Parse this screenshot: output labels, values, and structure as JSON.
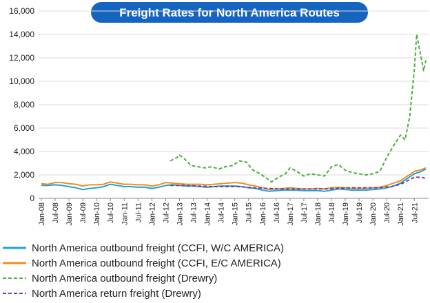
{
  "chart_data": {
    "type": "line",
    "title": "Freight Rates for North America Routes",
    "xlabel": "",
    "ylabel": "",
    "ylim": [
      0,
      16000
    ],
    "yticks": [
      "0",
      "2,000",
      "4,000",
      "6,000",
      "8,000",
      "10,000",
      "12,000",
      "14,000",
      "16,000"
    ],
    "xticks": [
      "Jan-08",
      "Jul-08",
      "Jan-09",
      "Jul-09",
      "Jan-10",
      "Jul-10",
      "Jan-11",
      "Jul-11",
      "Jan-12",
      "Jul-12",
      "Jan-13",
      "Jul-13",
      "Jan-14",
      "Jul-14",
      "Jan-15",
      "Jul-15",
      "Jan-16",
      "Jul-16",
      "Jan-17",
      "Jul-17",
      "Jan-18",
      "Jul-18",
      "Jan-19",
      "Jul-19",
      "Jan-20",
      "Jul-20",
      "Jan-21",
      "Jul-21"
    ],
    "grid": "horizontal",
    "legend_position": "bottom",
    "series": [
      {
        "name": "North America outbound freight (CCFI, W/C AMERICA)",
        "color": "#1aa3dc",
        "style": "solid",
        "points": [
          [
            "2008-01",
            1100
          ],
          [
            "2008-04",
            1100
          ],
          [
            "2008-07",
            1150
          ],
          [
            "2008-10",
            1100
          ],
          [
            "2009-01",
            1000
          ],
          [
            "2009-04",
            900
          ],
          [
            "2009-07",
            750
          ],
          [
            "2009-10",
            850
          ],
          [
            "2010-01",
            900
          ],
          [
            "2010-04",
            1000
          ],
          [
            "2010-07",
            1200
          ],
          [
            "2010-10",
            1100
          ],
          [
            "2011-01",
            1000
          ],
          [
            "2011-04",
            1000
          ],
          [
            "2011-07",
            950
          ],
          [
            "2011-10",
            950
          ],
          [
            "2012-01",
            850
          ],
          [
            "2012-04",
            950
          ],
          [
            "2012-07",
            1100
          ],
          [
            "2012-10",
            1150
          ],
          [
            "2013-01",
            1100
          ],
          [
            "2013-04",
            1050
          ],
          [
            "2013-07",
            1050
          ],
          [
            "2013-10",
            1000
          ],
          [
            "2014-01",
            950
          ],
          [
            "2014-04",
            1000
          ],
          [
            "2014-07",
            1050
          ],
          [
            "2014-10",
            1050
          ],
          [
            "2015-01",
            1050
          ],
          [
            "2015-04",
            1000
          ],
          [
            "2015-07",
            900
          ],
          [
            "2015-10",
            850
          ],
          [
            "2016-01",
            700
          ],
          [
            "2016-04",
            600
          ],
          [
            "2016-07",
            650
          ],
          [
            "2016-10",
            700
          ],
          [
            "2017-01",
            700
          ],
          [
            "2017-04",
            700
          ],
          [
            "2017-07",
            650
          ],
          [
            "2017-10",
            650
          ],
          [
            "2018-01",
            650
          ],
          [
            "2018-04",
            600
          ],
          [
            "2018-07",
            700
          ],
          [
            "2018-10",
            800
          ],
          [
            "2019-01",
            750
          ],
          [
            "2019-04",
            700
          ],
          [
            "2019-07",
            700
          ],
          [
            "2019-10",
            700
          ],
          [
            "2020-01",
            750
          ],
          [
            "2020-04",
            800
          ],
          [
            "2020-07",
            900
          ],
          [
            "2020-10",
            1050
          ],
          [
            "2021-01",
            1300
          ],
          [
            "2021-04",
            1700
          ],
          [
            "2021-07",
            2100
          ],
          [
            "2021-10",
            2300
          ],
          [
            "2021-12",
            2500
          ]
        ]
      },
      {
        "name": "North America outbound freight (CCFI, E/C AMERICA)",
        "color": "#f28c1e",
        "style": "solid",
        "points": [
          [
            "2008-01",
            1250
          ],
          [
            "2008-04",
            1200
          ],
          [
            "2008-07",
            1350
          ],
          [
            "2008-10",
            1350
          ],
          [
            "2009-01",
            1250
          ],
          [
            "2009-04",
            1200
          ],
          [
            "2009-07",
            1050
          ],
          [
            "2009-10",
            1150
          ],
          [
            "2010-01",
            1150
          ],
          [
            "2010-04",
            1200
          ],
          [
            "2010-07",
            1400
          ],
          [
            "2010-10",
            1300
          ],
          [
            "2011-01",
            1200
          ],
          [
            "2011-04",
            1200
          ],
          [
            "2011-07",
            1150
          ],
          [
            "2011-10",
            1150
          ],
          [
            "2012-01",
            1050
          ],
          [
            "2012-04",
            1150
          ],
          [
            "2012-07",
            1350
          ],
          [
            "2012-10",
            1300
          ],
          [
            "2013-01",
            1250
          ],
          [
            "2013-04",
            1200
          ],
          [
            "2013-07",
            1200
          ],
          [
            "2013-10",
            1200
          ],
          [
            "2014-01",
            1150
          ],
          [
            "2014-04",
            1200
          ],
          [
            "2014-07",
            1250
          ],
          [
            "2014-10",
            1300
          ],
          [
            "2015-01",
            1350
          ],
          [
            "2015-04",
            1300
          ],
          [
            "2015-07",
            1150
          ],
          [
            "2015-10",
            1050
          ],
          [
            "2016-01",
            900
          ],
          [
            "2016-04",
            750
          ],
          [
            "2016-07",
            800
          ],
          [
            "2016-10",
            850
          ],
          [
            "2017-01",
            900
          ],
          [
            "2017-04",
            850
          ],
          [
            "2017-07",
            800
          ],
          [
            "2017-10",
            800
          ],
          [
            "2018-01",
            850
          ],
          [
            "2018-04",
            800
          ],
          [
            "2018-07",
            900
          ],
          [
            "2018-10",
            950
          ],
          [
            "2019-01",
            900
          ],
          [
            "2019-04",
            850
          ],
          [
            "2019-07",
            850
          ],
          [
            "2019-10",
            850
          ],
          [
            "2020-01",
            900
          ],
          [
            "2020-04",
            950
          ],
          [
            "2020-07",
            1100
          ],
          [
            "2020-10",
            1300
          ],
          [
            "2021-01",
            1500
          ],
          [
            "2021-04",
            1900
          ],
          [
            "2021-07",
            2300
          ],
          [
            "2021-10",
            2450
          ],
          [
            "2021-12",
            2600
          ]
        ]
      },
      {
        "name": "North America outbound freight (Drewry)",
        "color": "#4caf3f",
        "style": "dashed",
        "points": [
          [
            "2012-09",
            3200
          ],
          [
            "2012-12",
            3500
          ],
          [
            "2013-01",
            3700
          ],
          [
            "2013-03",
            3400
          ],
          [
            "2013-06",
            2800
          ],
          [
            "2013-09",
            2700
          ],
          [
            "2013-12",
            2600
          ],
          [
            "2014-03",
            2700
          ],
          [
            "2014-06",
            2500
          ],
          [
            "2014-09",
            2700
          ],
          [
            "2014-12",
            2800
          ],
          [
            "2015-03",
            3200
          ],
          [
            "2015-06",
            3100
          ],
          [
            "2015-09",
            2400
          ],
          [
            "2015-12",
            2100
          ],
          [
            "2016-03",
            1700
          ],
          [
            "2016-05",
            1400
          ],
          [
            "2016-08",
            1800
          ],
          [
            "2016-11",
            2100
          ],
          [
            "2017-01",
            2600
          ],
          [
            "2017-04",
            2300
          ],
          [
            "2017-07",
            1900
          ],
          [
            "2017-10",
            2100
          ],
          [
            "2018-01",
            2000
          ],
          [
            "2018-04",
            1900
          ],
          [
            "2018-07",
            2700
          ],
          [
            "2018-10",
            2900
          ],
          [
            "2019-01",
            2400
          ],
          [
            "2019-04",
            2200
          ],
          [
            "2019-07",
            2100
          ],
          [
            "2019-10",
            2000
          ],
          [
            "2020-01",
            2100
          ],
          [
            "2020-04",
            2300
          ],
          [
            "2020-07",
            3500
          ],
          [
            "2020-10",
            4500
          ],
          [
            "2021-01",
            5400
          ],
          [
            "2021-03",
            5000
          ],
          [
            "2021-05",
            7000
          ],
          [
            "2021-07",
            11000
          ],
          [
            "2021-08",
            14000
          ],
          [
            "2021-10",
            12000
          ],
          [
            "2021-11",
            10900
          ],
          [
            "2021-12",
            11800
          ]
        ]
      },
      {
        "name": "North America return freight (Drewry)",
        "color": "#7b3b8e",
        "style": "dashed",
        "points": [
          [
            "2012-09",
            1100
          ],
          [
            "2013-03",
            1100
          ],
          [
            "2013-09",
            1050
          ],
          [
            "2014-03",
            1000
          ],
          [
            "2014-09",
            1000
          ],
          [
            "2015-03",
            1000
          ],
          [
            "2015-09",
            900
          ],
          [
            "2016-03",
            850
          ],
          [
            "2016-09",
            800
          ],
          [
            "2017-03",
            800
          ],
          [
            "2017-09",
            800
          ],
          [
            "2018-03",
            800
          ],
          [
            "2018-09",
            850
          ],
          [
            "2019-03",
            900
          ],
          [
            "2019-09",
            900
          ],
          [
            "2020-03",
            900
          ],
          [
            "2020-09",
            1000
          ],
          [
            "2021-01",
            1200
          ],
          [
            "2021-04",
            1500
          ],
          [
            "2021-07",
            1800
          ],
          [
            "2021-10",
            1800
          ],
          [
            "2021-12",
            1700
          ]
        ]
      }
    ]
  }
}
